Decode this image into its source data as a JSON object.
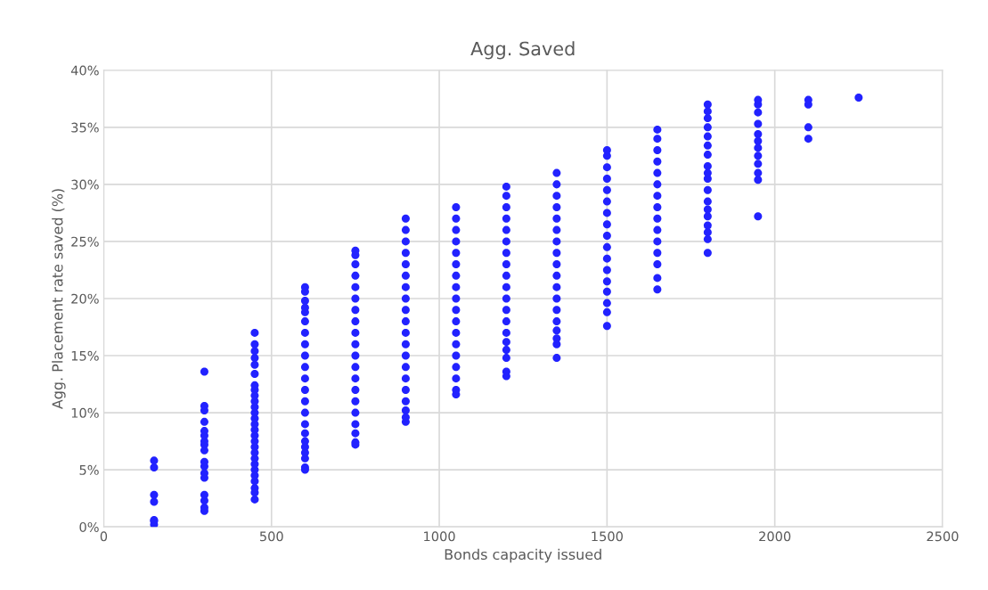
{
  "chart_data": {
    "type": "scatter",
    "title": "Agg. Saved",
    "xlabel": "Bonds capacity issued",
    "ylabel": "Agg. Placement rate saved (%)",
    "xlim": [
      0,
      2500
    ],
    "xticks": [
      0,
      500,
      1000,
      1500,
      2000,
      2500
    ],
    "ylim": [
      0,
      40
    ],
    "yticks": [
      {
        "value": 0,
        "label": "0%"
      },
      {
        "value": 5,
        "label": "5%"
      },
      {
        "value": 10,
        "label": "10%"
      },
      {
        "value": 15,
        "label": "15%"
      },
      {
        "value": 20,
        "label": "20%"
      },
      {
        "value": 25,
        "label": "25%"
      },
      {
        "value": 30,
        "label": "30%"
      },
      {
        "value": 35,
        "label": "35%"
      },
      {
        "value": 40,
        "label": "40%"
      }
    ],
    "grid": true,
    "marker": "circle",
    "series": [
      {
        "color": "#2222ff",
        "x": [
          150,
          150,
          150,
          150,
          150,
          150,
          150,
          300,
          300,
          300,
          300,
          300,
          300,
          300,
          300,
          300,
          300,
          300,
          300,
          300,
          300,
          300,
          300,
          300,
          450,
          450,
          450,
          450,
          450,
          450,
          450,
          450,
          450,
          450,
          450,
          450,
          450,
          450,
          450,
          450,
          450,
          450,
          450,
          450,
          450,
          450,
          450,
          450,
          450,
          450,
          450,
          600,
          600,
          600,
          600,
          600,
          600,
          600,
          600,
          600,
          600,
          600,
          600,
          600,
          600,
          600,
          600,
          600,
          600,
          600,
          600,
          600,
          600,
          750,
          750,
          750,
          750,
          750,
          750,
          750,
          750,
          750,
          750,
          750,
          750,
          750,
          750,
          750,
          750,
          750,
          750,
          750,
          750,
          900,
          900,
          900,
          900,
          900,
          900,
          900,
          900,
          900,
          900,
          900,
          900,
          900,
          900,
          900,
          900,
          900,
          900,
          900,
          900,
          1050,
          1050,
          1050,
          1050,
          1050,
          1050,
          1050,
          1050,
          1050,
          1050,
          1050,
          1050,
          1050,
          1050,
          1050,
          1050,
          1050,
          1050,
          1200,
          1200,
          1200,
          1200,
          1200,
          1200,
          1200,
          1200,
          1200,
          1200,
          1200,
          1200,
          1200,
          1200,
          1200,
          1200,
          1200,
          1200,
          1200,
          1350,
          1350,
          1350,
          1350,
          1350,
          1350,
          1350,
          1350,
          1350,
          1350,
          1350,
          1350,
          1350,
          1350,
          1350,
          1350,
          1350,
          1350,
          1500,
          1500,
          1500,
          1500,
          1500,
          1500,
          1500,
          1500,
          1500,
          1500,
          1500,
          1500,
          1500,
          1500,
          1500,
          1500,
          1500,
          1650,
          1650,
          1650,
          1650,
          1650,
          1650,
          1650,
          1650,
          1650,
          1650,
          1650,
          1650,
          1650,
          1650,
          1650,
          1800,
          1800,
          1800,
          1800,
          1800,
          1800,
          1800,
          1800,
          1800,
          1800,
          1800,
          1800,
          1800,
          1800,
          1800,
          1800,
          1800,
          1800,
          1950,
          1950,
          1950,
          1950,
          1950,
          1950,
          1950,
          1950,
          1950,
          1950,
          1950,
          1950,
          2100,
          2100,
          2100,
          2100,
          2250
        ],
        "values": [
          0.2,
          0.5,
          0.6,
          2.2,
          2.8,
          5.2,
          5.8,
          1.4,
          1.7,
          2.3,
          2.8,
          4.3,
          4.7,
          5.3,
          5.7,
          6.7,
          7.2,
          7.5,
          8.0,
          8.4,
          9.2,
          10.2,
          10.6,
          13.6,
          2.4,
          3.0,
          3.4,
          4.0,
          4.5,
          5.0,
          5.5,
          6.0,
          6.5,
          7.0,
          7.5,
          8.0,
          8.5,
          9.0,
          9.5,
          10.0,
          10.5,
          11.0,
          11.5,
          12.0,
          12.4,
          13.4,
          14.2,
          14.8,
          15.4,
          16.0,
          17.0,
          5.0,
          5.2,
          6.0,
          6.5,
          7.0,
          7.5,
          8.2,
          9,
          10,
          11,
          12,
          13,
          14,
          15,
          16,
          17,
          18,
          18.8,
          19.2,
          19.8,
          20.6,
          21.0,
          7.2,
          7.4,
          8.2,
          9,
          10,
          11,
          12,
          13,
          14,
          15,
          16,
          17,
          18,
          19,
          20,
          21,
          22,
          23.0,
          23.8,
          24.2,
          9.2,
          9.6,
          10.2,
          11,
          12,
          13,
          14,
          15,
          16,
          17,
          18,
          19,
          20,
          21,
          22,
          23,
          24,
          25,
          26.0,
          27.0,
          11.6,
          12.0,
          13,
          14,
          15,
          16,
          17,
          18,
          19,
          20,
          21,
          22,
          23,
          24,
          25,
          26,
          27,
          28.0,
          13.2,
          13.6,
          14.8,
          15.5,
          16.2,
          17,
          18,
          19,
          20,
          21,
          22,
          23,
          24,
          25,
          26,
          27,
          28,
          29,
          29.8,
          14.8,
          16.0,
          16.5,
          17.2,
          18,
          19,
          20,
          21,
          22,
          23,
          24,
          25,
          26,
          27,
          28,
          29,
          30,
          31.0,
          17.6,
          18.8,
          19.6,
          20.6,
          21.5,
          22.5,
          23.5,
          24.5,
          25.5,
          26.5,
          27.5,
          28.5,
          29.5,
          30.5,
          31.5,
          32.5,
          33.0,
          20.8,
          21.8,
          23.0,
          24,
          25,
          26,
          27,
          28,
          29,
          30,
          31,
          32,
          33,
          34,
          34.8,
          24.0,
          25.2,
          25.8,
          26.4,
          27.2,
          27.8,
          28.5,
          29.5,
          30.5,
          31.0,
          31.6,
          32.6,
          33.4,
          34.2,
          35.0,
          35.8,
          36.4,
          37.0,
          27.2,
          30.4,
          31.0,
          31.8,
          32.5,
          33.2,
          33.8,
          34.4,
          35.3,
          36.3,
          37.0,
          37.4,
          34.0,
          35.0,
          37.0,
          37.4,
          37.6
        ]
      }
    ]
  }
}
